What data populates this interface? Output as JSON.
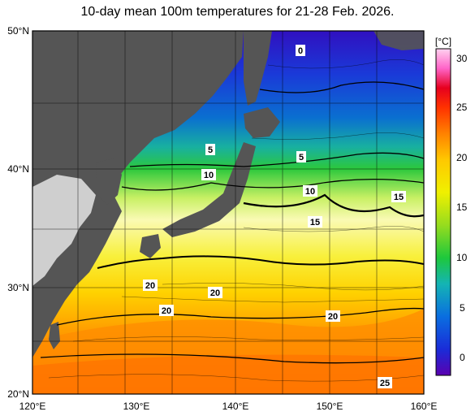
{
  "title": "10-day mean 100m temperatures for 21-28 Feb. 2026.",
  "axes": {
    "lat_ticks": [
      "50°N",
      "40°N",
      "30°N",
      "20°N"
    ],
    "lon_ticks": [
      "120°E",
      "130°E",
      "140°E",
      "150°E",
      "160°E"
    ]
  },
  "colorbar": {
    "unit": "[°C]",
    "ticks": [
      "30",
      "25",
      "20",
      "15",
      "10",
      "5",
      "0"
    ],
    "stops": [
      "#5a00b0",
      "#1a2cd8",
      "#0a6ee0",
      "#14b4b4",
      "#1ec83c",
      "#96dc1e",
      "#f0f000",
      "#ffc800",
      "#ff8200",
      "#ff3200",
      "#e6001e",
      "#ff64c8",
      "#ffd2f0"
    ]
  },
  "contour_labels": [
    "0",
    "5",
    "5",
    "10",
    "10",
    "15",
    "15",
    "20",
    "20",
    "20",
    "20",
    "25"
  ],
  "colors": {
    "land_dark": "#555555",
    "land_light": "#cfcfcf"
  }
}
